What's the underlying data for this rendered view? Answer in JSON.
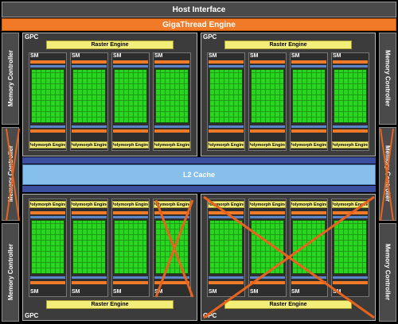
{
  "host_interface": "Host Interface",
  "gigathread_engine": "GigaThread Engine",
  "memory_controller": "Memory Controller",
  "l2_cache": "L2 Cache",
  "gpc_label": "GPC",
  "raster_engine": "Raster Engine",
  "sm_label": "SM",
  "polymorph_engine": "Polymorph Engine",
  "colors": {
    "background": "#000000",
    "host_bar": "#4a4a4a",
    "gigathread": "#f07a28",
    "cuda_cores": "#29d61f",
    "raster_engine": "#f3ee7a",
    "l2_cache": "#86c0ea",
    "disabled_cross": "#e8641e"
  }
}
